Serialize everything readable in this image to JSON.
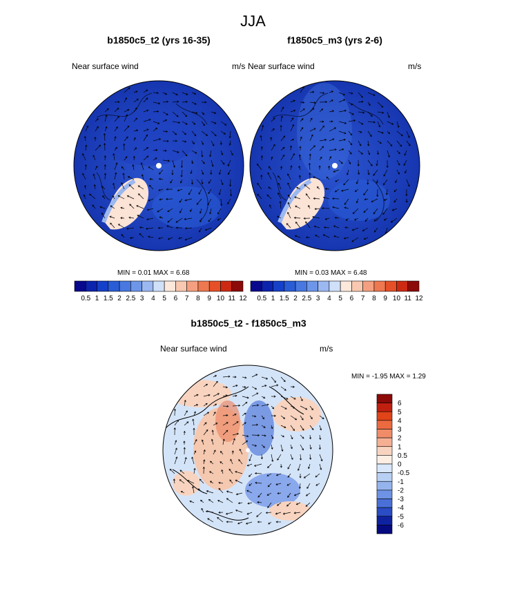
{
  "title": "JJA",
  "panels": [
    {
      "title": "b1850c5_t2 (yrs 16-35)",
      "left_label": "Near surface wind",
      "right_label": "m/s",
      "minmax": "MIN =   0.01 MAX =   6.68"
    },
    {
      "title": "f1850c5_m3 (yrs 2-6)",
      "left_label": "Near surface wind",
      "right_label": "m/s",
      "minmax": "MIN =   0.03 MAX =   6.48"
    },
    {
      "title": "b1850c5_t2 - f1850c5_m3",
      "left_label": "Near surface wind",
      "right_label": "m/s",
      "minmax": "MIN =  -1.95 MAX =   1.29"
    }
  ],
  "chart_data": {
    "type": "heatmap",
    "projection": "polar stereographic",
    "wind_speed_colorbar": {
      "labels": [
        "0.5",
        "1",
        "1.5",
        "2",
        "2.5",
        "3",
        "4",
        "5",
        "6",
        "7",
        "8",
        "9",
        "10",
        "11",
        "12"
      ],
      "colors": [
        "#08088c",
        "#0b23ad",
        "#1540c8",
        "#2a5cd6",
        "#4878e0",
        "#6d96e8",
        "#9bb8f0",
        "#cfe0f8",
        "#fde8dc",
        "#f8c8b0",
        "#f4a080",
        "#ee7850",
        "#e65028",
        "#cc2a12",
        "#8c0a08"
      ]
    },
    "difference_colorbar": {
      "labels": [
        "6",
        "5",
        "4",
        "3",
        "2",
        "1",
        "0.5",
        "0",
        "-0.5",
        "-1",
        "-2",
        "-3",
        "-4",
        "-5",
        "-6"
      ],
      "colors": [
        "#8c0a08",
        "#c02010",
        "#e04418",
        "#ec6a40",
        "#f08c68",
        "#f5b094",
        "#f8d4c0",
        "#fdeee4",
        "#d8e8fa",
        "#b8d0f4",
        "#95b4ee",
        "#6e92e4",
        "#4a70d8",
        "#2a4cc4",
        "#0e22a0",
        "#060a80"
      ]
    }
  }
}
